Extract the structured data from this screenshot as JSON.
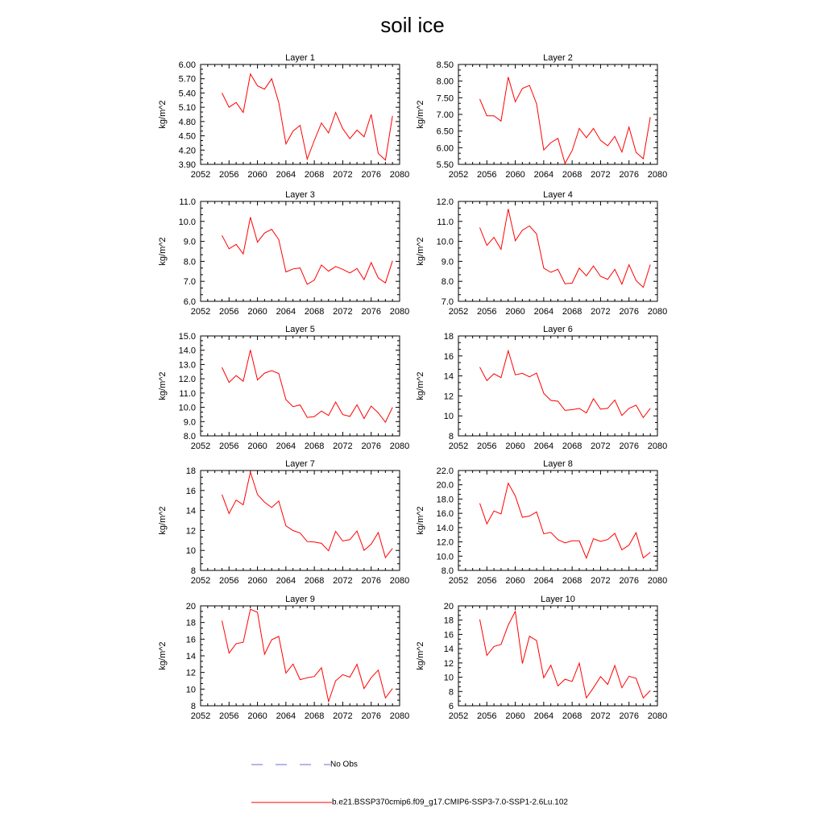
{
  "title": "soil ice",
  "legend": {
    "obs_label": "No Obs",
    "obs_color": "#6b6bd6",
    "model_label": "b.e21.BSSP370cmip6.f09_g17.CMIP6-SSP3-7.0-SSP1-2.6Lu.102",
    "model_color": "#ff0000"
  },
  "chart_data": [
    {
      "type": "line",
      "title": "Layer 1",
      "ylabel": "kg/m^2",
      "xlim": [
        2052,
        2080
      ],
      "xticks": [
        2052,
        2056,
        2060,
        2064,
        2068,
        2072,
        2076,
        2080
      ],
      "ylim": [
        3.9,
        6.0
      ],
      "yticks": [
        3.9,
        4.2,
        4.5,
        4.8,
        5.1,
        5.4,
        5.7,
        6.0
      ],
      "ytick_labels": [
        "3.90",
        "4.20",
        "4.50",
        "4.80",
        "5.10",
        "5.40",
        "5.70",
        "6.00"
      ],
      "x": [
        2055,
        2056,
        2057,
        2058,
        2059,
        2060,
        2061,
        2062,
        2063,
        2064,
        2065,
        2066,
        2067,
        2068,
        2069,
        2070,
        2071,
        2072,
        2073,
        2074,
        2075,
        2076,
        2077,
        2078,
        2079
      ],
      "values": [
        5.4,
        5.1,
        5.2,
        4.99,
        5.8,
        5.55,
        5.48,
        5.7,
        5.2,
        4.33,
        4.6,
        4.72,
        4.01,
        4.4,
        4.77,
        4.56,
        4.99,
        4.65,
        4.44,
        4.62,
        4.48,
        4.95,
        4.13,
        3.99,
        4.92
      ]
    },
    {
      "type": "line",
      "title": "Layer 2",
      "ylabel": "kg/m^2",
      "xlim": [
        2052,
        2080
      ],
      "xticks": [
        2052,
        2056,
        2060,
        2064,
        2068,
        2072,
        2076,
        2080
      ],
      "ylim": [
        5.5,
        8.5
      ],
      "yticks": [
        5.5,
        6.0,
        6.5,
        7.0,
        7.5,
        8.0,
        8.5
      ],
      "ytick_labels": [
        "5.50",
        "6.00",
        "6.50",
        "7.00",
        "7.50",
        "8.00",
        "8.50"
      ],
      "x": [
        2055,
        2056,
        2057,
        2058,
        2059,
        2060,
        2061,
        2062,
        2063,
        2064,
        2065,
        2066,
        2067,
        2068,
        2069,
        2070,
        2071,
        2072,
        2073,
        2074,
        2075,
        2076,
        2077,
        2078,
        2079
      ],
      "values": [
        7.46,
        6.96,
        6.96,
        6.8,
        8.12,
        7.38,
        7.78,
        7.87,
        7.32,
        5.93,
        6.15,
        6.28,
        5.53,
        5.91,
        6.58,
        6.3,
        6.58,
        6.22,
        6.06,
        6.34,
        5.87,
        6.62,
        5.86,
        5.67,
        6.92
      ]
    },
    {
      "type": "line",
      "title": "Layer 3",
      "ylabel": "kg/m^2",
      "xlim": [
        2052,
        2080
      ],
      "xticks": [
        2052,
        2056,
        2060,
        2064,
        2068,
        2072,
        2076,
        2080
      ],
      "ylim": [
        6,
        11
      ],
      "yticks": [
        6,
        7,
        8,
        9,
        10,
        11
      ],
      "ytick_labels": [
        "6.0",
        "7.0",
        "8.0",
        "9.0",
        "10.0",
        "11.0"
      ],
      "x": [
        2055,
        2056,
        2057,
        2058,
        2059,
        2060,
        2061,
        2062,
        2063,
        2064,
        2065,
        2066,
        2067,
        2068,
        2069,
        2070,
        2071,
        2072,
        2073,
        2074,
        2075,
        2076,
        2077,
        2078,
        2079
      ],
      "values": [
        9.3,
        8.63,
        8.85,
        8.37,
        10.21,
        8.96,
        9.42,
        9.6,
        9.09,
        7.47,
        7.62,
        7.67,
        6.85,
        7.06,
        7.82,
        7.51,
        7.74,
        7.6,
        7.42,
        7.64,
        7.09,
        7.94,
        7.17,
        6.92,
        8.03
      ]
    },
    {
      "type": "line",
      "title": "Layer 4",
      "ylabel": "kg/m^2",
      "xlim": [
        2052,
        2080
      ],
      "xticks": [
        2052,
        2056,
        2060,
        2064,
        2068,
        2072,
        2076,
        2080
      ],
      "ylim": [
        7,
        12
      ],
      "yticks": [
        7,
        8,
        9,
        10,
        11,
        12
      ],
      "ytick_labels": [
        "7.0",
        "8.0",
        "9.0",
        "10.0",
        "11.0",
        "12.0"
      ],
      "x": [
        2055,
        2056,
        2057,
        2058,
        2059,
        2060,
        2061,
        2062,
        2063,
        2064,
        2065,
        2066,
        2067,
        2068,
        2069,
        2070,
        2071,
        2072,
        2073,
        2074,
        2075,
        2076,
        2077,
        2078,
        2079
      ],
      "values": [
        10.69,
        9.8,
        10.2,
        9.6,
        11.62,
        10.03,
        10.56,
        10.77,
        10.37,
        8.66,
        8.45,
        8.6,
        7.88,
        7.91,
        8.66,
        8.28,
        8.77,
        8.25,
        8.1,
        8.6,
        7.86,
        8.83,
        8.04,
        7.7,
        8.84
      ]
    },
    {
      "type": "line",
      "title": "Layer 5",
      "ylabel": "kg/m^2",
      "xlim": [
        2052,
        2080
      ],
      "xticks": [
        2052,
        2056,
        2060,
        2064,
        2068,
        2072,
        2076,
        2080
      ],
      "ylim": [
        8,
        15
      ],
      "yticks": [
        8,
        9,
        10,
        11,
        12,
        13,
        14,
        15
      ],
      "ytick_labels": [
        "8.0",
        "9.0",
        "10.0",
        "11.0",
        "12.0",
        "13.0",
        "14.0",
        "15.0"
      ],
      "x": [
        2055,
        2056,
        2057,
        2058,
        2059,
        2060,
        2061,
        2062,
        2063,
        2064,
        2065,
        2066,
        2067,
        2068,
        2069,
        2070,
        2071,
        2072,
        2073,
        2074,
        2075,
        2076,
        2077,
        2078,
        2079
      ],
      "values": [
        12.8,
        11.75,
        12.22,
        11.83,
        14.02,
        11.92,
        12.4,
        12.57,
        12.37,
        10.54,
        10.05,
        10.17,
        9.29,
        9.35,
        9.74,
        9.43,
        10.37,
        9.49,
        9.36,
        10.18,
        9.22,
        10.09,
        9.61,
        8.96,
        10.0
      ]
    },
    {
      "type": "line",
      "title": "Layer 6",
      "ylabel": "kg/m^2",
      "xlim": [
        2052,
        2080
      ],
      "xticks": [
        2052,
        2056,
        2060,
        2064,
        2068,
        2072,
        2076,
        2080
      ],
      "ylim": [
        8,
        18
      ],
      "yticks": [
        8,
        10,
        12,
        14,
        16,
        18
      ],
      "ytick_labels": [
        "8",
        "10",
        "12",
        "14",
        "16",
        "18"
      ],
      "x": [
        2055,
        2056,
        2057,
        2058,
        2059,
        2060,
        2061,
        2062,
        2063,
        2064,
        2065,
        2066,
        2067,
        2068,
        2069,
        2070,
        2071,
        2072,
        2073,
        2074,
        2075,
        2076,
        2077,
        2078,
        2079
      ],
      "values": [
        14.88,
        13.53,
        14.22,
        13.83,
        16.52,
        14.11,
        14.26,
        13.91,
        14.28,
        12.26,
        11.55,
        11.47,
        10.55,
        10.62,
        10.75,
        10.3,
        11.72,
        10.67,
        10.76,
        11.59,
        10.04,
        10.75,
        11.07,
        9.82,
        10.76
      ]
    },
    {
      "type": "line",
      "title": "Layer 7",
      "ylabel": "kg/m^2",
      "xlim": [
        2052,
        2080
      ],
      "xticks": [
        2052,
        2056,
        2060,
        2064,
        2068,
        2072,
        2076,
        2080
      ],
      "ylim": [
        8,
        18
      ],
      "yticks": [
        8,
        10,
        12,
        14,
        16,
        18
      ],
      "ytick_labels": [
        "8",
        "10",
        "12",
        "14",
        "16",
        "18"
      ],
      "x": [
        2055,
        2056,
        2057,
        2058,
        2059,
        2060,
        2061,
        2062,
        2063,
        2064,
        2065,
        2066,
        2067,
        2068,
        2069,
        2070,
        2071,
        2072,
        2073,
        2074,
        2075,
        2076,
        2077,
        2078,
        2079
      ],
      "values": [
        15.6,
        13.69,
        15.04,
        14.57,
        17.85,
        15.6,
        14.82,
        14.3,
        14.94,
        12.46,
        11.99,
        11.75,
        10.89,
        10.84,
        10.71,
        9.96,
        11.91,
        10.94,
        11.08,
        11.94,
        10.01,
        10.63,
        11.79,
        9.29,
        10.2
      ]
    },
    {
      "type": "line",
      "title": "Layer 8",
      "ylabel": "kg/m^2",
      "xlim": [
        2052,
        2080
      ],
      "xticks": [
        2052,
        2056,
        2060,
        2064,
        2068,
        2072,
        2076,
        2080
      ],
      "ylim": [
        8,
        22
      ],
      "yticks": [
        8,
        10,
        12,
        14,
        16,
        18,
        20,
        22
      ],
      "ytick_labels": [
        "8.0",
        "10.0",
        "12.0",
        "14.0",
        "16.0",
        "18.0",
        "20.0",
        "22.0"
      ],
      "x": [
        2055,
        2056,
        2057,
        2058,
        2059,
        2060,
        2061,
        2062,
        2063,
        2064,
        2065,
        2066,
        2067,
        2068,
        2069,
        2070,
        2071,
        2072,
        2073,
        2074,
        2075,
        2076,
        2077,
        2078,
        2079
      ],
      "values": [
        17.4,
        14.52,
        16.33,
        15.92,
        20.23,
        18.43,
        15.45,
        15.62,
        16.2,
        13.13,
        13.33,
        12.31,
        11.86,
        12.14,
        12.14,
        9.73,
        12.45,
        12.07,
        12.32,
        13.19,
        10.88,
        11.55,
        13.28,
        9.75,
        10.54
      ]
    },
    {
      "type": "line",
      "title": "Layer 9",
      "ylabel": "kg/m^2",
      "xlim": [
        2052,
        2080
      ],
      "xticks": [
        2052,
        2056,
        2060,
        2064,
        2068,
        2072,
        2076,
        2080
      ],
      "ylim": [
        8,
        20
      ],
      "yticks": [
        8,
        10,
        12,
        14,
        16,
        18,
        20
      ],
      "ytick_labels": [
        "8",
        "10",
        "12",
        "14",
        "16",
        "18",
        "20"
      ],
      "x": [
        2055,
        2056,
        2057,
        2058,
        2059,
        2060,
        2061,
        2062,
        2063,
        2064,
        2065,
        2066,
        2067,
        2068,
        2069,
        2070,
        2071,
        2072,
        2073,
        2074,
        2075,
        2076,
        2077,
        2078,
        2079
      ],
      "values": [
        18.23,
        14.33,
        15.46,
        15.63,
        19.59,
        19.23,
        14.19,
        15.94,
        16.33,
        11.93,
        13.01,
        11.14,
        11.37,
        11.51,
        12.57,
        8.5,
        11.0,
        11.74,
        11.44,
        12.97,
        10.06,
        11.37,
        12.29,
        8.94,
        10.07
      ]
    },
    {
      "type": "line",
      "title": "Layer 10",
      "ylabel": "kg/m^2",
      "xlim": [
        2052,
        2080
      ],
      "xticks": [
        2052,
        2056,
        2060,
        2064,
        2068,
        2072,
        2076,
        2080
      ],
      "ylim": [
        6,
        20
      ],
      "yticks": [
        6,
        8,
        10,
        12,
        14,
        16,
        18,
        20
      ],
      "ytick_labels": [
        "6",
        "8",
        "10",
        "12",
        "14",
        "16",
        "18",
        "20"
      ],
      "x": [
        2055,
        2056,
        2057,
        2058,
        2059,
        2060,
        2061,
        2062,
        2063,
        2064,
        2065,
        2066,
        2067,
        2068,
        2069,
        2070,
        2071,
        2072,
        2073,
        2074,
        2075,
        2076,
        2077,
        2078,
        2079
      ],
      "values": [
        18.09,
        13.06,
        14.31,
        14.6,
        17.29,
        19.23,
        11.92,
        15.74,
        15.13,
        9.92,
        11.69,
        8.78,
        9.71,
        9.41,
        11.97,
        7.09,
        8.52,
        10.09,
        8.99,
        11.64,
        8.53,
        10.13,
        9.85,
        7.09,
        8.13
      ]
    }
  ]
}
